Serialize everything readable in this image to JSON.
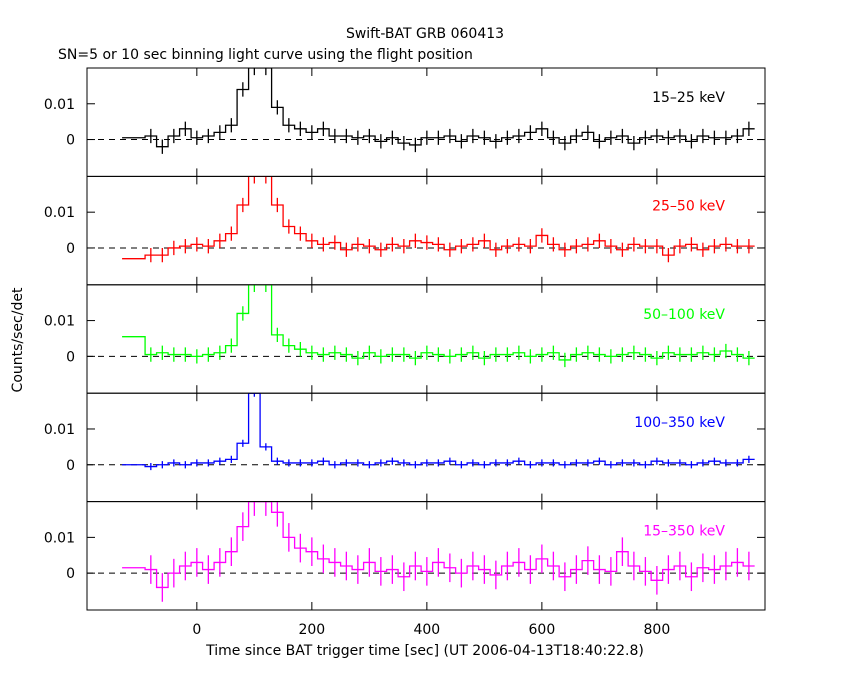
{
  "chart_data": {
    "type": "line",
    "title": "Swift-BAT GRB 060413",
    "subtitle": "SN=5 or 10 sec binning light curve using the flight position",
    "xlabel": "Time since BAT trigger time [sec] (UT 2006-04-13T18:40:22.8)",
    "ylabel": "Counts/sec/det",
    "xlim": [
      -191,
      988
    ],
    "ylim": [
      -0.0103,
      0.02
    ],
    "xticks": [
      0,
      200,
      400,
      600,
      800
    ],
    "xtick_labels": [
      "0",
      "200",
      "400",
      "600",
      "800"
    ],
    "yticks": [
      0,
      0.01
    ],
    "ytick_labels": [
      "0",
      "0.01"
    ],
    "pre_bin": {
      "x0": -130,
      "x1": -90
    },
    "bin_start": -90,
    "bin_width": 20,
    "panels": [
      {
        "label": "15–25 keV",
        "color": "#000000",
        "pre": 0.0005,
        "err": 0.002,
        "values": [
          0.001,
          -0.002,
          0.001,
          0.003,
          0.0005,
          0.001,
          0.002,
          0.004,
          0.014,
          0.02,
          0.02,
          0.009,
          0.004,
          0.003,
          0.002,
          0.003,
          0.001,
          0.001,
          0.0005,
          0.001,
          -0.0005,
          0.0005,
          -0.001,
          -0.0015,
          0.0005,
          0.0005,
          0.001,
          -0.0005,
          0.001,
          0.0005,
          -0.0005,
          0.0005,
          0.001,
          0.002,
          0.003,
          0.0005,
          -0.001,
          0.001,
          0.002,
          -0.0005,
          0.0005,
          0.001,
          -0.001,
          0.0005,
          0.001,
          0.0005,
          0.001,
          -0.0005,
          0.001,
          0.0005,
          0.0005,
          0.001,
          0.003
        ]
      },
      {
        "label": "25–50 keV",
        "color": "#ff0000",
        "pre": -0.003,
        "err": 0.002,
        "values": [
          -0.002,
          -0.002,
          0,
          0.0005,
          0.001,
          0.0005,
          0.002,
          0.004,
          0.012,
          0.02,
          0.02,
          0.012,
          0.006,
          0.004,
          0.002,
          0.001,
          0.0015,
          -0.0005,
          0.001,
          0.0005,
          -0.0005,
          0.001,
          0.0005,
          0.002,
          0.0015,
          0.001,
          -0.0005,
          0.0005,
          0.001,
          0.002,
          -0.0005,
          0.0005,
          0.001,
          0.0005,
          0.0035,
          0.001,
          -0.0005,
          0.0005,
          0.001,
          0.002,
          0.0005,
          -0.0005,
          0.001,
          0.0005,
          0.0005,
          -0.002,
          0.0005,
          0.001,
          -0.0005,
          0.0005,
          0.001,
          0.0005,
          0.0005
        ]
      },
      {
        "label": "50–100 keV",
        "color": "#00ff00",
        "pre": 0.0055,
        "err": 0.002,
        "values": [
          0.0005,
          0.001,
          0.0005,
          0.0005,
          0,
          0.0005,
          0.001,
          0.003,
          0.012,
          0.02,
          0.02,
          0.006,
          0.003,
          0.002,
          0.001,
          0.0005,
          0.001,
          0.0005,
          -0.0005,
          0.001,
          0,
          0.0005,
          0.0005,
          -0.0005,
          0.001,
          0.0005,
          0,
          0.0005,
          0.001,
          -0.0005,
          0.0005,
          0.0005,
          0.001,
          0,
          0.0005,
          0.001,
          -0.001,
          0.0005,
          0.001,
          0.0005,
          0,
          0.0005,
          0.001,
          0.0005,
          -0.0005,
          0.001,
          0.0005,
          0.0005,
          0.001,
          0.0005,
          0.0015,
          0.0005,
          -0.0005
        ]
      },
      {
        "label": "100–350 keV",
        "color": "#0000ff",
        "pre": 0,
        "err": 0.001,
        "values": [
          -0.0005,
          0,
          0.0005,
          0,
          0.0005,
          0.0005,
          0.001,
          0.0015,
          0.006,
          0.02,
          0.005,
          0.001,
          0.0005,
          0.0005,
          0.0005,
          0.001,
          0,
          0.0005,
          0.0005,
          0,
          0.0005,
          0.001,
          0.0005,
          0,
          0.0005,
          0.0005,
          0.001,
          0,
          0.0005,
          0,
          0.0005,
          0.0005,
          0.001,
          0,
          0.0005,
          0.0005,
          0,
          0.0005,
          0.0005,
          0.001,
          0,
          0.0005,
          0.0005,
          0,
          0.001,
          0.0005,
          0.0005,
          0,
          0.0005,
          0.001,
          0.0005,
          0.0005,
          0.0015
        ]
      },
      {
        "label": "15–350 keV",
        "color": "#ff00ff",
        "pre": 0.0015,
        "err": 0.004,
        "values": [
          0.001,
          -0.004,
          0,
          0.002,
          0.003,
          0.001,
          0.003,
          0.006,
          0.013,
          0.02,
          0.02,
          0.017,
          0.01,
          0.007,
          0.006,
          0.004,
          0.003,
          0.002,
          0.001,
          0.003,
          0.0005,
          0.001,
          -0.001,
          0.002,
          0.0005,
          0.003,
          0.0015,
          0,
          0.002,
          0.001,
          -0.0005,
          0.002,
          0.003,
          0.001,
          0.004,
          0.002,
          -0.001,
          0.001,
          0.0035,
          0.001,
          0.0005,
          0.006,
          0.002,
          0.0005,
          -0.002,
          0.001,
          0.002,
          -0.001,
          0.0015,
          0.001,
          0.002,
          0.003,
          0.002
        ]
      }
    ]
  }
}
